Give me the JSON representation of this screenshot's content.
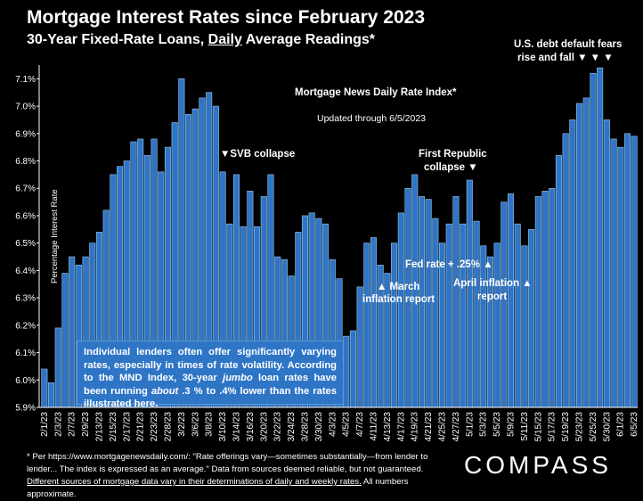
{
  "header": {
    "title": "Mortgage Interest Rates since February 2023",
    "subtitle_pre": "30-Year Fixed-Rate Loans, ",
    "subtitle_underlined": "Daily",
    "subtitle_post": " Average Readings*"
  },
  "annotations": {
    "index_name": "Mortgage News Daily Rate Index*",
    "updated": "Updated through 6/5/2023",
    "svb": "▼SVB collapse",
    "first_republic_1": "First Republic",
    "first_republic_2": "collapse ▼",
    "debt_1": "U.S. debt default fears",
    "debt_2": "rise and fall ▼ ▼ ▼",
    "march_1": "▲ March",
    "march_2": "inflation report",
    "fed": "Fed rate + .25% ▲",
    "april_1": "April inflation ▲",
    "april_2": "report"
  },
  "infobox": {
    "text_1": "Individual lenders often offer significantly varying rates, especially in times of rate volatility. According to the MND Index, 30-year ",
    "text_italic": "jumbo",
    "text_2": " loan rates have been running ",
    "text_italic_2": "about",
    "text_3": " .3 % to .4% lower than the rates illustrated here."
  },
  "footnote": {
    "text_1": "* Per https://www.mortgagenewsdaily.com/: \"Rate offerings vary—sometimes substantially—from lender to lender... The index is expressed as an average.\" Data from sources deemed reliable, but not guaranteed. ",
    "text_underlined": "Different sources of mortgage data vary in their determinations of daily and weekly rates.",
    "text_2": " All numbers approximate."
  },
  "brand": {
    "logo": "COMPASS"
  },
  "colors": {
    "bar": "#2e75c6",
    "bar_edge": "#9dc3e6",
    "background": "#000000"
  },
  "chart_data": {
    "type": "bar",
    "ylabel": "Percentage Interest  Rate",
    "ylim": [
      5.9,
      7.15
    ],
    "yticks": [
      "5.9%",
      "6.0%",
      "6.1%",
      "6.2%",
      "6.3%",
      "6.4%",
      "6.5%",
      "6.6%",
      "6.7%",
      "6.8%",
      "6.9%",
      "7.0%",
      "7.1%"
    ],
    "xticks": [
      "2/1/23",
      "2/3/23",
      "2/7/23",
      "2/9/23",
      "2/13/23",
      "2/15/23",
      "2/17/23",
      "2/21/23",
      "2/23/23",
      "2/28/23",
      "3/2/23",
      "3/6/23",
      "3/8/23",
      "3/10/23",
      "3/14/23",
      "3/16/23",
      "3/20/23",
      "3/22/23",
      "3/24/23",
      "3/28/23",
      "3/30/23",
      "4/3/23",
      "4/5/23",
      "4/7/23",
      "4/11/23",
      "4/13/23",
      "4/17/23",
      "4/19/23",
      "4/21/23",
      "4/25/23",
      "4/27/23",
      "5/1/23",
      "5/3/23",
      "5/5/23",
      "5/9/23",
      "5/11/23",
      "5/15/23",
      "5/17/23",
      "5/19/23",
      "5/23/23",
      "5/25/23",
      "5/30/23",
      "6/1/23",
      "6/5/23"
    ],
    "values": [
      6.04,
      5.99,
      6.19,
      6.39,
      6.45,
      6.42,
      6.45,
      6.5,
      6.54,
      6.62,
      6.75,
      6.78,
      6.8,
      6.87,
      6.88,
      6.82,
      6.88,
      6.76,
      6.85,
      6.94,
      7.1,
      6.97,
      6.99,
      7.03,
      7.05,
      7.0,
      6.76,
      6.57,
      6.75,
      6.56,
      6.69,
      6.56,
      6.67,
      6.75,
      6.45,
      6.44,
      6.38,
      6.54,
      6.6,
      6.61,
      6.59,
      6.57,
      6.44,
      6.37,
      6.16,
      6.18,
      6.34,
      6.5,
      6.52,
      6.42,
      6.39,
      6.5,
      6.61,
      6.7,
      6.75,
      6.67,
      6.66,
      6.59,
      6.5,
      6.57,
      6.67,
      6.57,
      6.73,
      6.58,
      6.49,
      6.45,
      6.5,
      6.65,
      6.68,
      6.57,
      6.49,
      6.55,
      6.67,
      6.69,
      6.7,
      6.82,
      6.9,
      6.95,
      7.01,
      7.03,
      7.12,
      7.14,
      6.95,
      6.88,
      6.85,
      6.9,
      6.89
    ],
    "grid": false
  }
}
